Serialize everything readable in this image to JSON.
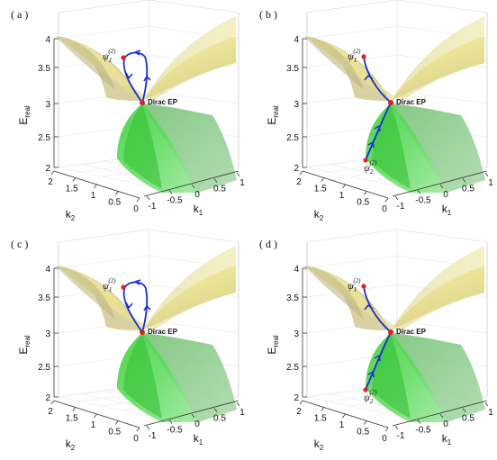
{
  "figure": {
    "panels": [
      {
        "label": "( a )",
        "path": "loop",
        "psi_top": "ψ",
        "psi_top_sub": "1",
        "psi_top_sup": "(2)",
        "psi_bottom": "",
        "psi_bottom_sub": "",
        "psi_bottom_sup": ""
      },
      {
        "label": "( b )",
        "path": "line",
        "psi_top": "ψ",
        "psi_top_sub": "1",
        "psi_top_sup": "(2)",
        "psi_bottom": "ψ",
        "psi_bottom_sub": "2",
        "psi_bottom_sup": "(2)"
      },
      {
        "label": "( c )",
        "path": "loop",
        "psi_top": "ψ",
        "psi_top_sub": "1",
        "psi_top_sup": "(2)",
        "psi_bottom": "",
        "psi_bottom_sub": "",
        "psi_bottom_sup": ""
      },
      {
        "label": "( d )",
        "path": "line",
        "psi_top": "ψ",
        "psi_top_sub": "1",
        "psi_top_sup": "(2)",
        "psi_bottom": "ψ",
        "psi_bottom_sub": "2",
        "psi_bottom_sup": "(2)"
      }
    ],
    "zlabel": "E",
    "zlabel_sub": "real",
    "xlabel": "k",
    "xlabel_sub": "1",
    "ylabel": "k",
    "ylabel_sub": "2",
    "ep_label": "Dirac EP",
    "z_ticks": [
      "4",
      "3.5",
      "3",
      "2.5",
      "2"
    ],
    "k2_ticks": [
      "2",
      "1.5",
      "1",
      "0.5",
      "0"
    ],
    "k1_ticks": [
      "-1",
      "-0.5",
      "0",
      "0.5",
      "1"
    ],
    "colors": {
      "upper_surface": "#efe99a",
      "lower_surface": "#4fd34f",
      "path": "#1a2fd0",
      "points": "#e02020"
    }
  }
}
